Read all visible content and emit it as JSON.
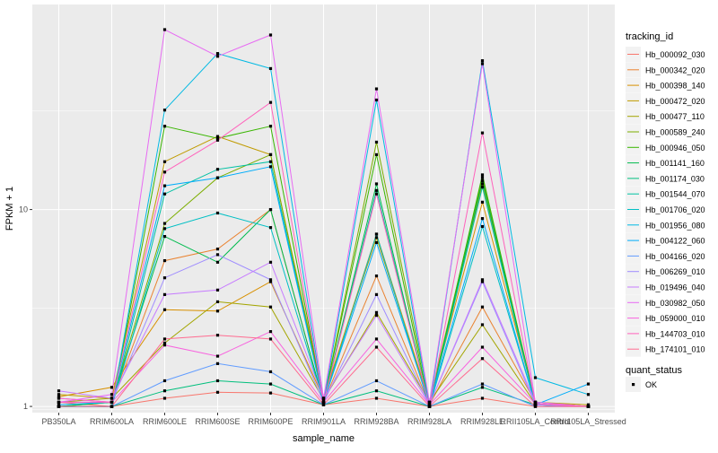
{
  "chart_data": {
    "type": "line",
    "xlabel": "sample_name",
    "ylabel": "FPKM + 1",
    "y_scale": "log10",
    "ylim": [
      0.93,
      110
    ],
    "y_ticks": [
      1,
      10
    ],
    "y_tick_labels": [
      "1",
      "10"
    ],
    "categories": [
      "PB350LA",
      "RRIM600LA",
      "RRIM600LE",
      "RRIM600SE",
      "RRIM600PE",
      "RRIM901LA",
      "RRIM928BA",
      "RRIM928LA",
      "RRIM928LE",
      "RRII105LA_Control",
      "RRII105LA_Stressed"
    ],
    "legend_position": "right",
    "panel_background": "#ebebeb",
    "grid_color": "#ffffff",
    "legend": {
      "title": "tracking_id",
      "items": [
        "Hb_000092_030",
        "Hb_000342_020",
        "Hb_000398_140",
        "Hb_000472_020",
        "Hb_000477_110",
        "Hb_000589_240",
        "Hb_000946_050",
        "Hb_001141_160",
        "Hb_001174_030",
        "Hb_001544_070",
        "Hb_001706_020",
        "Hb_001956_080",
        "Hb_004122_060",
        "Hb_004166_020",
        "Hb_006269_010",
        "Hb_019496_040",
        "Hb_030982_050",
        "Hb_059000_010",
        "Hb_144703_010",
        "Hb_174101_010"
      ]
    },
    "quant_legend": {
      "title": "quant_status",
      "label": "OK"
    },
    "series": [
      {
        "name": "Hb_000092_030",
        "color": "#F8766D",
        "values": [
          1.05,
          1.0,
          1.1,
          1.18,
          1.17,
          1.02,
          1.1,
          1.0,
          1.1,
          1.0,
          1.0
        ]
      },
      {
        "name": "Hb_000342_020",
        "color": "#EA8331",
        "values": [
          1.1,
          1.05,
          5.5,
          6.3,
          10.0,
          1.05,
          4.6,
          1.02,
          3.2,
          1.05,
          1.0
        ]
      },
      {
        "name": "Hb_000398_140",
        "color": "#D89000",
        "values": [
          1.12,
          1.25,
          3.1,
          3.05,
          4.3,
          1.1,
          7.5,
          1.05,
          10.9,
          1.05,
          1.0
        ]
      },
      {
        "name": "Hb_000472_020",
        "color": "#C09B00",
        "values": [
          1.15,
          1.1,
          17.5,
          23.5,
          19.0,
          1.1,
          7.2,
          1.05,
          13.5,
          1.05,
          1.02
        ]
      },
      {
        "name": "Hb_000477_110",
        "color": "#A3A500",
        "values": [
          1.05,
          1.1,
          2.1,
          3.4,
          3.2,
          1.08,
          3.0,
          1.05,
          2.6,
          1.03,
          1.0
        ]
      },
      {
        "name": "Hb_000589_240",
        "color": "#7CAE00",
        "values": [
          1.0,
          1.05,
          8.5,
          14.5,
          19.0,
          1.05,
          22.0,
          1.05,
          14.5,
          1.05,
          1.0
        ]
      },
      {
        "name": "Hb_000946_050",
        "color": "#39B600",
        "values": [
          1.0,
          1.0,
          26.5,
          23.0,
          26.5,
          1.05,
          19.0,
          1.0,
          15.0,
          1.02,
          1.0
        ]
      },
      {
        "name": "Hb_001141_160",
        "color": "#00BB4E",
        "values": [
          1.0,
          1.05,
          7.3,
          5.4,
          10.0,
          1.05,
          13.5,
          1.0,
          14.0,
          1.02,
          1.0
        ]
      },
      {
        "name": "Hb_001174_030",
        "color": "#00BF7D",
        "values": [
          1.0,
          1.0,
          1.2,
          1.35,
          1.3,
          1.02,
          1.2,
          1.0,
          1.25,
          1.02,
          1.0
        ]
      },
      {
        "name": "Hb_001544_070",
        "color": "#00C1A3",
        "values": [
          1.0,
          1.0,
          12.0,
          16.0,
          17.5,
          1.05,
          12.5,
          1.0,
          13.0,
          1.02,
          1.0
        ]
      },
      {
        "name": "Hb_001706_020",
        "color": "#00BFC4",
        "values": [
          1.0,
          1.0,
          8.0,
          9.6,
          8.1,
          1.05,
          7.5,
          1.0,
          8.2,
          1.02,
          1.0
        ]
      },
      {
        "name": "Hb_001956_080",
        "color": "#00B9E3",
        "values": [
          1.0,
          1.0,
          32.0,
          62.0,
          52.0,
          1.05,
          36.0,
          1.0,
          57.0,
          1.4,
          1.15
        ]
      },
      {
        "name": "Hb_004122_060",
        "color": "#00ADFA",
        "values": [
          1.02,
          1.05,
          13.2,
          14.5,
          16.5,
          1.05,
          6.8,
          1.02,
          9.0,
          1.02,
          1.3
        ]
      },
      {
        "name": "Hb_004166_020",
        "color": "#619CFF",
        "values": [
          1.0,
          1.0,
          1.35,
          1.65,
          1.5,
          1.02,
          1.35,
          1.0,
          1.3,
          1.0,
          1.0
        ]
      },
      {
        "name": "Hb_006269_010",
        "color": "#9F8CFF",
        "values": [
          1.05,
          1.05,
          4.5,
          5.9,
          4.4,
          1.05,
          3.7,
          1.02,
          4.3,
          1.02,
          1.0
        ]
      },
      {
        "name": "Hb_019496_040",
        "color": "#C77CFF",
        "values": [
          1.2,
          1.1,
          3.7,
          3.9,
          5.4,
          1.1,
          2.9,
          1.02,
          4.4,
          1.05,
          1.0
        ]
      },
      {
        "name": "Hb_030982_050",
        "color": "#E76BF3",
        "values": [
          1.05,
          1.15,
          82.0,
          60.0,
          77.0,
          1.1,
          41.0,
          1.05,
          55.0,
          1.05,
          1.0
        ]
      },
      {
        "name": "Hb_059000_010",
        "color": "#F863DF",
        "values": [
          1.1,
          1.05,
          2.05,
          1.8,
          2.4,
          1.05,
          2.2,
          1.02,
          2.0,
          1.03,
          1.0
        ]
      },
      {
        "name": "Hb_144703_010",
        "color": "#FF62BC",
        "values": [
          1.05,
          1.05,
          15.5,
          22.5,
          35.0,
          1.05,
          12.0,
          1.0,
          24.5,
          1.03,
          1.0
        ]
      },
      {
        "name": "Hb_174101_010",
        "color": "#FF6C91",
        "values": [
          1.0,
          1.0,
          2.2,
          2.3,
          2.2,
          1.02,
          2.0,
          1.0,
          1.75,
          1.0,
          1.0
        ]
      }
    ]
  }
}
